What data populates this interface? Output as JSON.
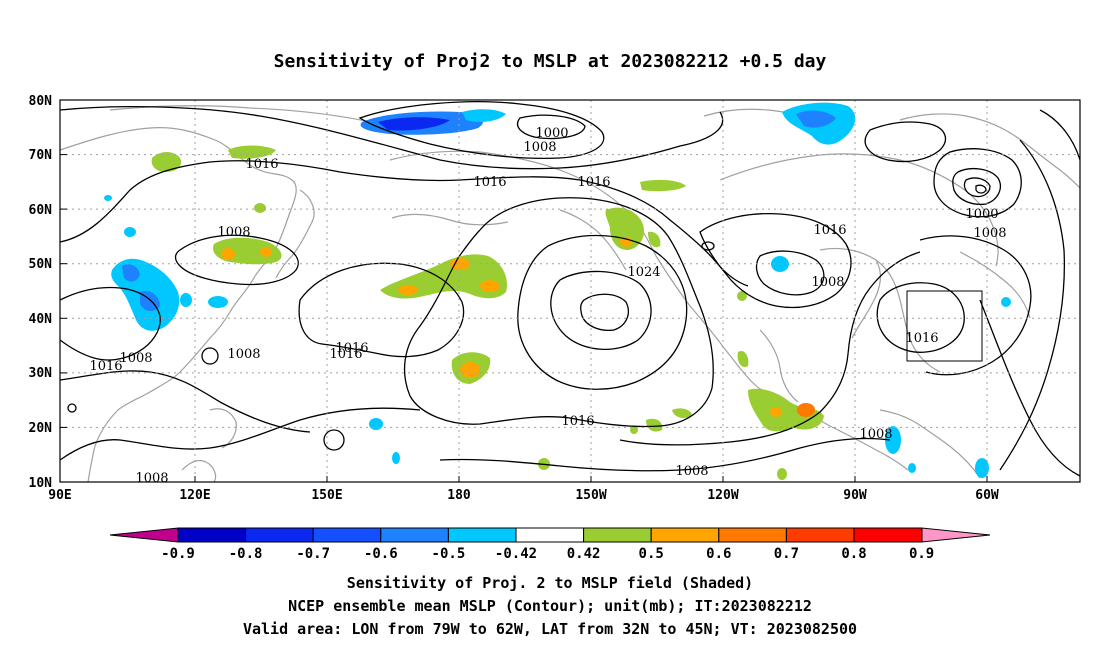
{
  "title": "Sensitivity of Proj2 to MSLP at 2023082212 +0.5 day",
  "map": {
    "lat_ticks": [
      "80N",
      "70N",
      "60N",
      "50N",
      "40N",
      "30N",
      "20N",
      "10N"
    ],
    "lon_ticks": [
      "90E",
      "120E",
      "150E",
      "180",
      "150W",
      "120W",
      "90W",
      "60W"
    ],
    "grid": "dotted",
    "contour_labels": [
      "1000",
      "1008",
      "1016",
      "1016",
      "1016",
      "1008",
      "1008",
      "1024",
      "1016",
      "1016",
      "1008",
      "1000",
      "1008",
      "1016",
      "1008",
      "1016",
      "1016",
      "1016",
      "1008",
      "1008",
      "1008"
    ],
    "valid_box": {
      "lon_from": "79W",
      "lon_to": "62W",
      "lat_from": "32N",
      "lat_to": "45N"
    }
  },
  "colorbar": {
    "labels": [
      "-0.9",
      "-0.8",
      "-0.7",
      "-0.6",
      "-0.5",
      "-0.42",
      "0.42",
      "0.5",
      "0.6",
      "0.7",
      "0.8",
      "0.9"
    ],
    "colors": [
      "#c0008c",
      "#0000c8",
      "#0a28f0",
      "#1450ff",
      "#1e82ff",
      "#00c8ff",
      "#ffffff",
      "#9acd32",
      "#ffa500",
      "#ff7800",
      "#ff3c00",
      "#ff0000",
      "#ff96c8"
    ]
  },
  "captions": [
    "Sensitivity of Proj. 2 to MSLP field (Shaded)",
    "NCEP ensemble mean MSLP (Contour); unit(mb); IT:2023082212",
    "Valid area: LON from 79W to 62W, LAT from 32N to 45N; VT: 2023082500"
  ]
}
